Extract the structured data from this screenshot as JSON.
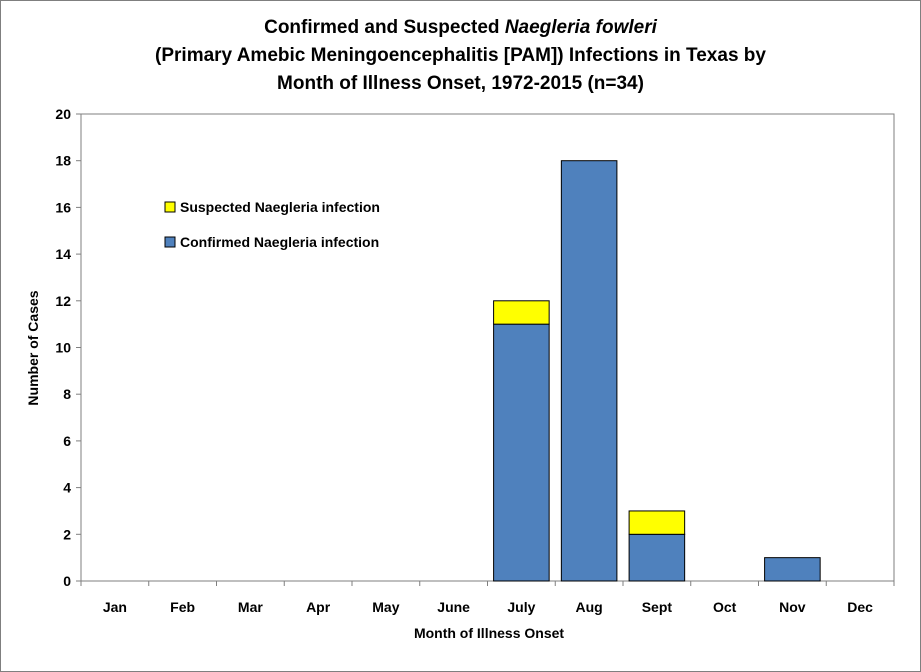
{
  "chart_data": {
    "type": "bar",
    "stacked": true,
    "title": {
      "line1_prefix": "Confirmed and Suspected ",
      "line1_italic": "Naegleria fowleri",
      "line2": "(Primary Amebic Meningoencephalitis [PAM]) Infections in Texas by",
      "line3": "Month of Illness Onset, 1972-2015 (n=34)"
    },
    "xlabel": "Month of Illness Onset",
    "ylabel": "Number of Cases",
    "ylim": [
      0,
      20
    ],
    "yticks": [
      0,
      2,
      4,
      6,
      8,
      10,
      12,
      14,
      16,
      18,
      20
    ],
    "categories": [
      "Jan",
      "Feb",
      "Mar",
      "Apr",
      "May",
      "June",
      "July",
      "Aug",
      "Sept",
      "Oct",
      "Nov",
      "Dec"
    ],
    "series": [
      {
        "name": "Confirmed Naegleria infection",
        "color": "#4f81bd",
        "values": [
          0,
          0,
          0,
          0,
          0,
          0,
          11,
          18,
          2,
          0,
          1,
          0
        ]
      },
      {
        "name": "Suspected Naegleria infection",
        "color": "#ffff00",
        "values": [
          0,
          0,
          0,
          0,
          0,
          0,
          1,
          0,
          1,
          0,
          0,
          0
        ]
      }
    ],
    "legend": {
      "placement": "upper-left",
      "order": [
        "Suspected Naegleria infection",
        "Confirmed Naegleria infection"
      ]
    }
  }
}
